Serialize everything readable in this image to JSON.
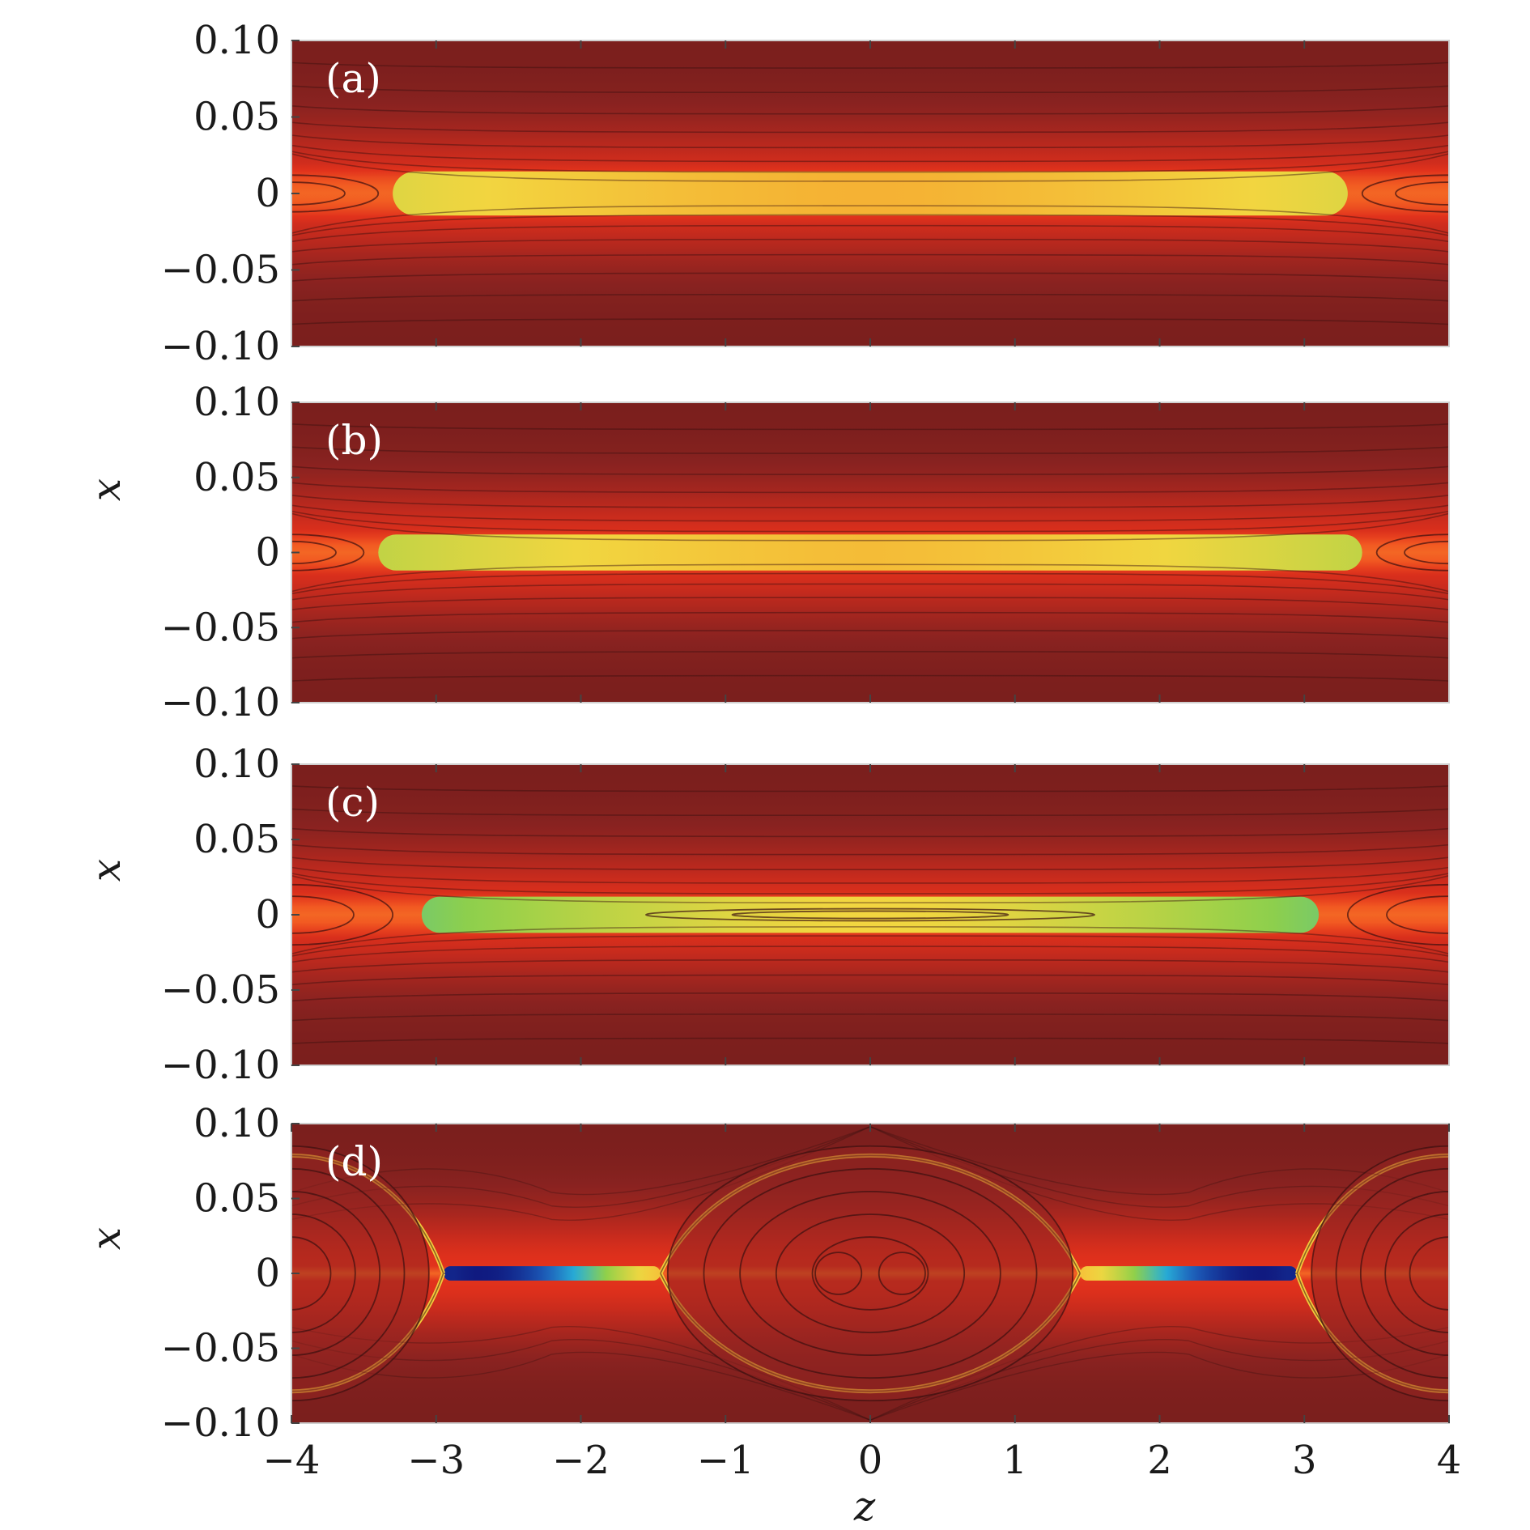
{
  "chart_data": [
    {
      "type": "heatmap",
      "panel_label": "(a)",
      "xlabel": "",
      "ylabel": "",
      "xlim": [
        -4,
        4
      ],
      "ylim": [
        -0.1,
        0.1
      ],
      "x_ticks": [],
      "y_ticks": [
        "0.10",
        "0.05",
        "0",
        "−0.05",
        "−0.10"
      ],
      "y_tick_values": [
        0.1,
        0.05,
        0,
        -0.05,
        -0.1
      ],
      "sheet_peak": 0.62,
      "sheet_halfwidth": 0.012,
      "x_points": [
        -3.3,
        3.3
      ],
      "islands": [
        {
          "z": -4,
          "x": 0,
          "rz": 0.6,
          "rx": 0.012
        },
        {
          "z": 4,
          "x": 0,
          "rz": 0.6,
          "rx": 0.012
        }
      ]
    },
    {
      "type": "heatmap",
      "panel_label": "(b)",
      "xlabel": "",
      "ylabel": "x",
      "xlim": [
        -4,
        4
      ],
      "ylim": [
        -0.1,
        0.1
      ],
      "x_ticks": [],
      "y_ticks": [
        "0.10",
        "0.05",
        "0",
        "−0.05",
        "−0.10"
      ],
      "y_tick_values": [
        0.1,
        0.05,
        0,
        -0.05,
        -0.1
      ],
      "sheet_peak": 0.65,
      "sheet_halfwidth": 0.01,
      "x_points": [
        -3.4,
        3.4
      ],
      "islands": [
        {
          "z": -4,
          "x": 0,
          "rz": 0.5,
          "rx": 0.012
        },
        {
          "z": 4,
          "x": 0,
          "rz": 0.5,
          "rx": 0.012
        }
      ]
    },
    {
      "type": "heatmap",
      "panel_label": "(c)",
      "xlabel": "",
      "ylabel": "x",
      "xlim": [
        -4,
        4
      ],
      "ylim": [
        -0.1,
        0.1
      ],
      "x_ticks": [],
      "y_ticks": [
        "0.10",
        "0.05",
        "0",
        "−0.05",
        "−0.10"
      ],
      "y_tick_values": [
        0.1,
        0.05,
        0,
        -0.05,
        -0.1
      ],
      "sheet_peak": 0.72,
      "sheet_halfwidth": 0.01,
      "x_points": [
        -3.1,
        3.1
      ],
      "islands": [
        {
          "z": -4,
          "x": 0,
          "rz": 0.7,
          "rx": 0.02
        },
        {
          "z": 4,
          "x": 0,
          "rz": 0.7,
          "rx": 0.02
        },
        {
          "z": 0,
          "x": 0,
          "rz": 1.55,
          "rx": 0.004
        }
      ]
    },
    {
      "type": "heatmap",
      "panel_label": "(d)",
      "xlabel": "z",
      "ylabel": "x",
      "xlim": [
        -4,
        4
      ],
      "ylim": [
        -0.1,
        0.1
      ],
      "x_ticks": [
        "−4",
        "−3",
        "−2",
        "−1",
        "0",
        "1",
        "2",
        "3",
        "4"
      ],
      "x_tick_values": [
        -4,
        -3,
        -2,
        -1,
        0,
        1,
        2,
        3,
        4
      ],
      "y_ticks": [
        "0.10",
        "0.05",
        "0",
        "−0.05",
        "−0.10"
      ],
      "y_tick_values": [
        0.1,
        0.05,
        0,
        -0.05,
        -0.1
      ],
      "sheet_peak": 1.0,
      "sheet_halfwidth": 0.004,
      "x_points": [
        -2.95,
        -1.45,
        1.45,
        2.95
      ],
      "islands": [
        {
          "z": 0,
          "x": 0,
          "rz": 1.4,
          "rx": 0.085
        },
        {
          "z": -4,
          "x": 0,
          "rz": 0.95,
          "rx": 0.085
        },
        {
          "z": 4,
          "x": 0,
          "rz": 0.95,
          "rx": 0.085
        },
        {
          "z": -0.22,
          "x": 0,
          "rz": 0.16,
          "rx": 0.014
        },
        {
          "z": 0.22,
          "x": 0,
          "rz": 0.16,
          "rx": 0.014
        }
      ]
    }
  ],
  "colors": {
    "background": "#ffffff",
    "colormap": [
      "#6b1a1a",
      "#8a2320",
      "#b5281e",
      "#e0301c",
      "#f25a22",
      "#f7962a",
      "#f2d640",
      "#8fd04a",
      "#28b0d8",
      "#1c5ab8",
      "#101a80"
    ],
    "contour": "#3a1010"
  }
}
